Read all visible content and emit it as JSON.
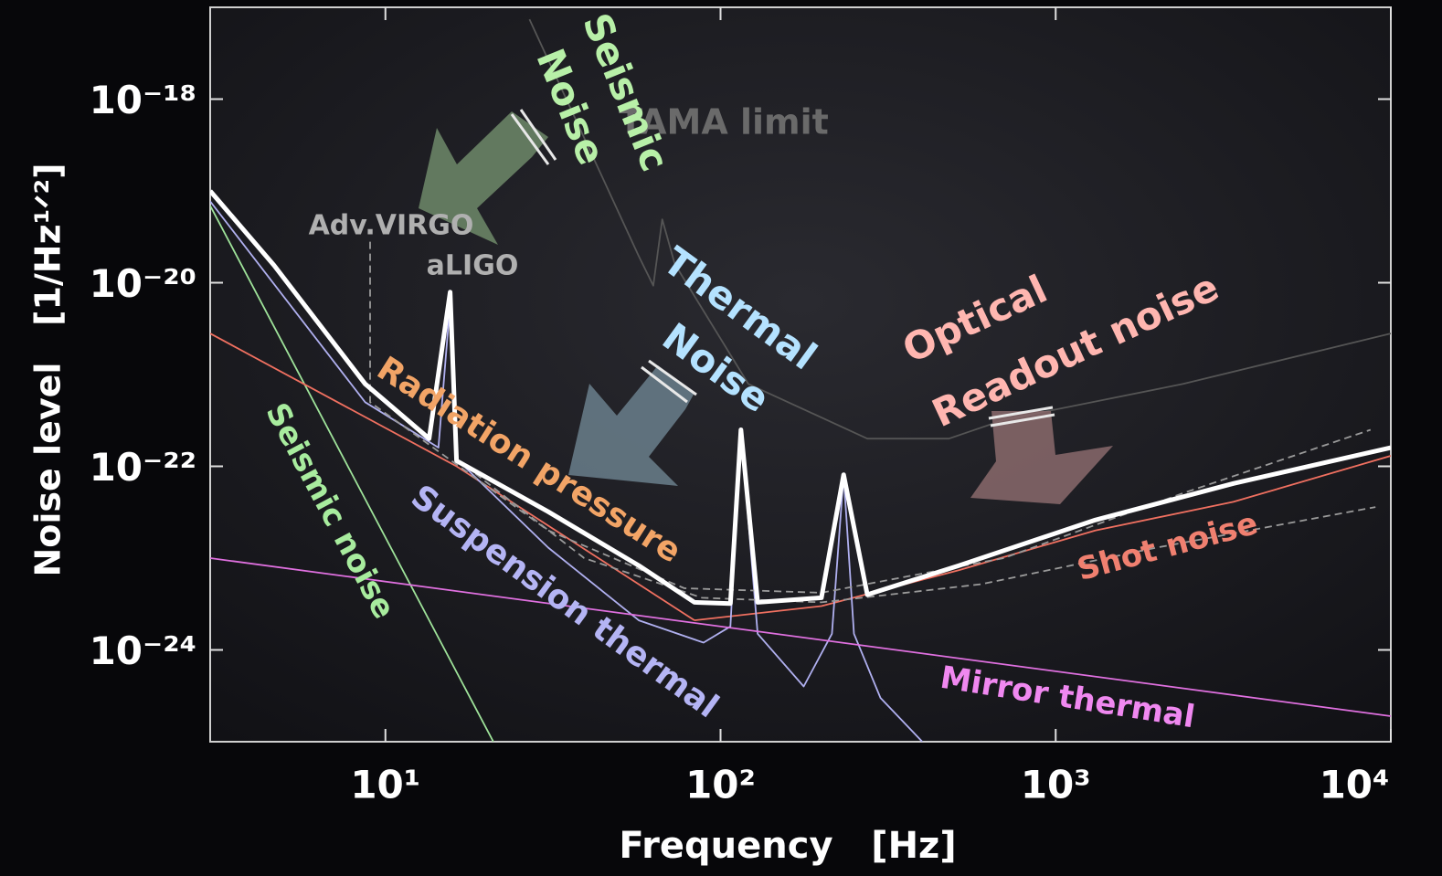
{
  "chart_data": {
    "type": "line",
    "xscale": "log",
    "yscale": "log",
    "xlabel": "Frequency   [Hz]",
    "ylabel": "Noise level   [1/Hz¹ᐟ²]",
    "xlim": [
      3,
      10000
    ],
    "ylim": [
      1e-25,
      1e-17
    ],
    "xticks": [
      {
        "value": 10,
        "label": "10¹"
      },
      {
        "value": 100,
        "label": "10²"
      },
      {
        "value": 1000,
        "label": "10³"
      },
      {
        "value": 10000,
        "label": "10⁴"
      }
    ],
    "yticks": [
      {
        "value": 1e-18,
        "label": "10⁻¹⁸"
      },
      {
        "value": 1e-20,
        "label": "10⁻²⁰"
      },
      {
        "value": 1e-22,
        "label": "10⁻²²"
      },
      {
        "value": 1e-24,
        "label": "10⁻²⁴"
      }
    ],
    "grid": false,
    "series": [
      {
        "color": "#ffffff",
        "x": [
          3,
          4.65,
          8.7,
          13.5,
          15.6,
          16.3,
          30.6,
          57,
          83.6,
          107,
          115,
          129,
          200,
          233,
          274,
          515,
          1313,
          3390,
          10000
        ],
        "values": [
          1e-19,
          1.55e-20,
          7.9e-22,
          2e-22,
          7.9e-21,
          1.15e-22,
          3.2e-23,
          8.3e-24,
          3.3e-24,
          3.2e-24,
          2.5e-22,
          3.3e-24,
          3.7e-24,
          8.1e-23,
          4e-24,
          8.3e-24,
          2.6e-23,
          6.5e-23,
          1.6e-22
        ]
      },
      {
        "name": "Seismic noise",
        "color": "#9fe39a",
        "x": [
          3,
          21
        ],
        "values": [
          6.9e-20,
          1e-25
        ]
      },
      {
        "name": "Radiation pressure",
        "color": "#f07060",
        "x": [
          3,
          16.3,
          83.6
        ],
        "values": [
          2.8e-21,
          1e-22,
          2.1e-24
        ]
      },
      {
        "name": "Shot noise",
        "color": "#f07060",
        "x": [
          83.6,
          200,
          515,
          1313,
          3390,
          10000
        ],
        "values": [
          2.1e-24,
          3e-24,
          7.4e-24,
          2e-23,
          4.1e-23,
          1.3e-22
        ]
      },
      {
        "name": "Suspension thermal",
        "color": "#b0b0f0",
        "x": [
          3,
          8.7,
          14.4,
          15.6,
          16.3,
          30.6,
          57,
          89,
          107,
          115,
          129,
          177,
          215,
          233,
          250,
          300,
          400
        ],
        "values": [
          7.7e-20,
          5e-22,
          1.6e-22,
          6e-21,
          1.2e-22,
          1.3e-23,
          2.1e-24,
          1.2e-24,
          1.8e-24,
          2.5e-22,
          1.5e-24,
          4e-25,
          1.5e-24,
          8e-23,
          1.5e-24,
          3e-25,
          1e-25
        ]
      },
      {
        "name": "Mirror thermal",
        "color": "#e070e0",
        "x": [
          3,
          10000
        ],
        "values": [
          1e-23,
          1.9e-25
        ]
      },
      {
        "name": "Adv.VIRGO",
        "color": "#9a9a9a",
        "dash": true,
        "x": [
          9,
          9,
          30.6,
          78,
          200,
          700,
          2400,
          8700
        ],
        "values": [
          2.8e-20,
          5e-22,
          2e-23,
          4.7e-24,
          4.2e-24,
          1e-23,
          5.1e-23,
          2.5e-22
        ]
      },
      {
        "name": "aLIGO",
        "color": "#9a9a9a",
        "dash": true,
        "x": [
          16.3,
          39.2,
          88,
          200,
          600,
          2000,
          9000
        ],
        "values": [
          1.2e-22,
          1e-23,
          3.7e-24,
          3.3e-24,
          5.2e-24,
          1.3e-23,
          3.6e-23
        ]
      },
      {
        "name": "TAMA limit",
        "color": "#555555",
        "x": [
          26.9,
          57,
          63,
          67,
          73,
          121,
          274,
          480,
          700,
          2400,
          10000
        ],
        "values": [
          7.4e-18,
          1.95e-20,
          9.3e-21,
          4.9e-20,
          1.6e-20,
          7.9e-22,
          2e-22,
          2e-22,
          3.2e-22,
          7.9e-22,
          2.8e-21
        ]
      }
    ],
    "annotations": [
      [
        "Seismic",
        "Noise"
      ],
      [
        "Thermal",
        "Noise"
      ],
      [
        "Optical",
        "Readout noise"
      ]
    ]
  }
}
